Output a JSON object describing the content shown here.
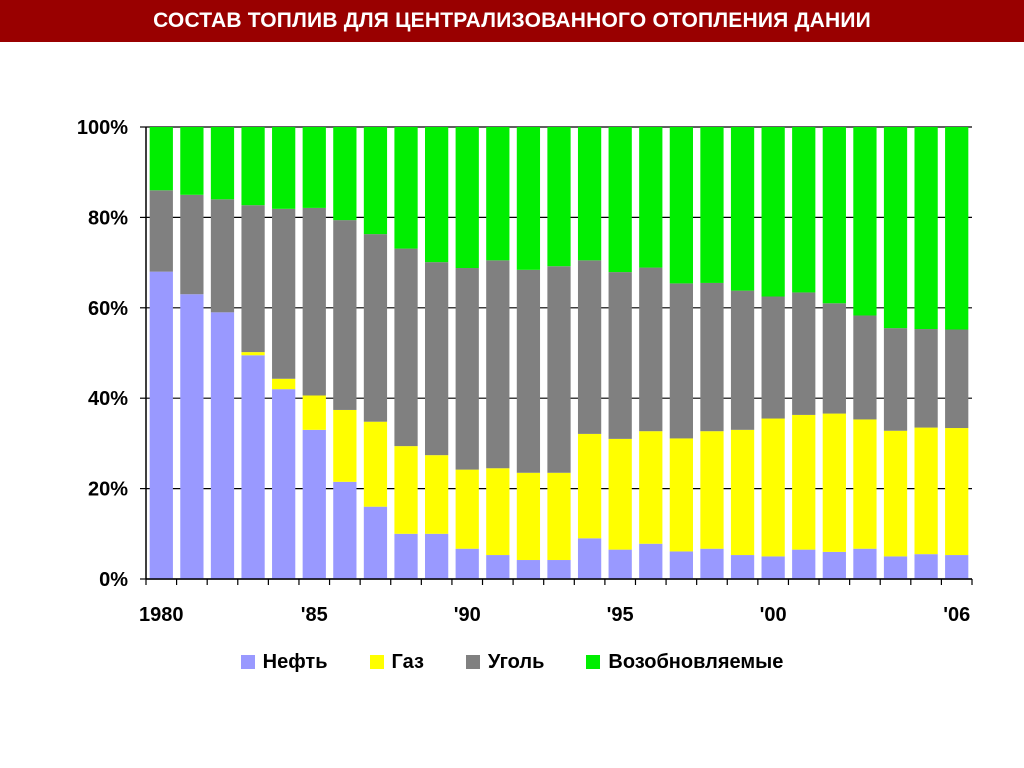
{
  "title": "СОСТАВ ТОПЛИВ ДЛЯ ЦЕНТРАЛИЗОВАННОГО ОТОПЛЕНИЯ ДАНИИ",
  "chart_data": {
    "type": "bar",
    "stacked": true,
    "percent": true,
    "categories": [
      "1980",
      "1981",
      "1982",
      "1983",
      "1984",
      "1985",
      "1986",
      "1987",
      "1988",
      "1989",
      "1990",
      "1991",
      "1992",
      "1993",
      "1994",
      "1995",
      "1996",
      "1997",
      "1998",
      "1999",
      "2000",
      "2001",
      "2002",
      "2003",
      "2004",
      "2005",
      "2006"
    ],
    "x_tick_labels": [
      {
        "index": 0,
        "label": "1980"
      },
      {
        "index": 5,
        "label": "'85"
      },
      {
        "index": 10,
        "label": "'90"
      },
      {
        "index": 15,
        "label": "'95"
      },
      {
        "index": 20,
        "label": "'00"
      },
      {
        "index": 26,
        "label": "'06"
      }
    ],
    "y_ticks": [
      "0%",
      "20%",
      "40%",
      "60%",
      "80%",
      "100%"
    ],
    "ylim": [
      0,
      100
    ],
    "grid": true,
    "legend_position": "bottom",
    "series": [
      {
        "name": "Нефть",
        "color": "#9999ff",
        "values": [
          68,
          63,
          59,
          49.5,
          42,
          33,
          21.5,
          16,
          10,
          10,
          6.7,
          5.3,
          4.2,
          4.2,
          9,
          6.5,
          7.8,
          6.1,
          6.7,
          5.3,
          5,
          6.5,
          6,
          6.7,
          5,
          5.5,
          5.3
        ]
      },
      {
        "name": "Газ",
        "color": "#ffff00",
        "values": [
          0,
          0,
          0,
          0.7,
          2.3,
          7.6,
          15.9,
          18.8,
          19.4,
          17.4,
          17.5,
          19.2,
          19.3,
          19.3,
          23.1,
          24.5,
          24.9,
          25,
          26,
          27.7,
          30.5,
          29.8,
          30.6,
          28.6,
          27.8,
          28,
          28.1
        ]
      },
      {
        "name": "Уголь",
        "color": "#808080",
        "values": [
          18,
          22,
          25,
          32.5,
          37.6,
          41.5,
          42,
          41.5,
          43.7,
          42.7,
          44.6,
          46,
          44.9,
          45.7,
          38.4,
          36.9,
          36.2,
          34.3,
          32.8,
          30.8,
          27,
          27.1,
          24.4,
          23,
          22.7,
          21.8,
          21.8
        ]
      },
      {
        "name": "Возобновляемые",
        "color": "#00ee00",
        "values": [
          14,
          15,
          16,
          17.3,
          18.1,
          17.9,
          20.6,
          23.7,
          26.9,
          29.9,
          31.2,
          29.5,
          31.6,
          30.8,
          29.5,
          32.1,
          31.1,
          34.6,
          34.5,
          36.2,
          37.5,
          36.6,
          39,
          41.7,
          44.5,
          44.7,
          44.8
        ]
      }
    ]
  }
}
